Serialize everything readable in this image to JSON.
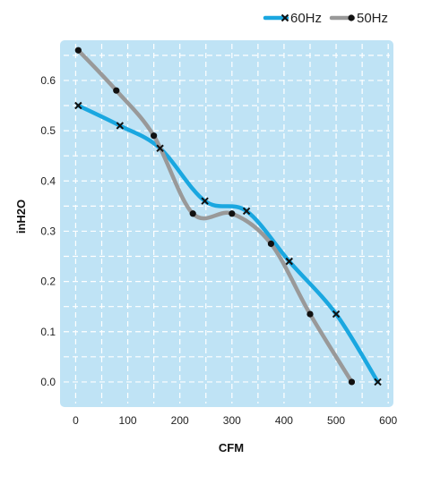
{
  "chart_data": {
    "type": "line",
    "title": "",
    "xlabel": "CFM",
    "ylabel": "inH2O",
    "xlim": [
      -30,
      610
    ],
    "ylim": [
      -0.05,
      0.68
    ],
    "xticks": [
      0,
      100,
      200,
      300,
      400,
      500,
      600
    ],
    "yticks": [
      0.0,
      0.1,
      0.2,
      0.3,
      0.4,
      0.5,
      0.6
    ],
    "xtick_labels": [
      "0",
      "100",
      "200",
      "300",
      "400",
      "500",
      "600"
    ],
    "ytick_labels": [
      "0.0",
      "0.1",
      "0.2",
      "0.3",
      "0.4",
      "0.5",
      "0.6"
    ],
    "grid": true,
    "legend": "top-right",
    "background_color": "#bfe3f5",
    "series": [
      {
        "name": "60Hz",
        "marker": "x",
        "color": "#1aa7e0",
        "x": [
          5,
          85,
          162,
          248,
          328,
          410,
          500,
          580
        ],
        "y": [
          0.55,
          0.51,
          0.465,
          0.36,
          0.34,
          0.24,
          0.135,
          0.0
        ]
      },
      {
        "name": "50Hz",
        "marker": "dot",
        "color": "#999999",
        "x": [
          5,
          78,
          150,
          225,
          300,
          375,
          450,
          530
        ],
        "y": [
          0.66,
          0.58,
          0.49,
          0.335,
          0.335,
          0.275,
          0.135,
          0.0
        ]
      }
    ]
  }
}
